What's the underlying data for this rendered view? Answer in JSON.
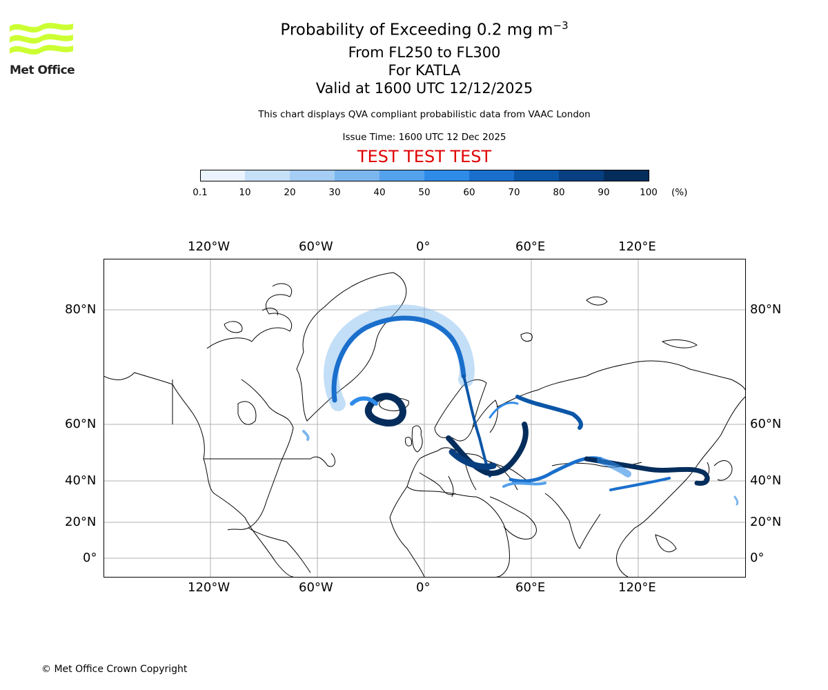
{
  "logo": {
    "text": "Met Office",
    "color": "#ccff33"
  },
  "title": {
    "line1_prefix": "Probability of Exceeding 0.2 mg m",
    "line1_sup": "−3",
    "line2": "From FL250 to FL300",
    "line3": "For KATLA",
    "line4": "Valid at 1600 UTC 12/12/2025"
  },
  "subtitle": "This chart displays QVA compliant probabilistic data from VAAC London",
  "issue_time": "Issue Time: 1600 UTC 12 Dec 2025",
  "test_banner": {
    "text": "TEST TEST TEST",
    "color": "#e00000"
  },
  "colorbar": {
    "ticks": [
      "0.1",
      "10",
      "20",
      "30",
      "40",
      "50",
      "60",
      "70",
      "80",
      "90",
      "100"
    ],
    "unit": "(%)",
    "colors": [
      "#eaf3fe",
      "#c6e0f8",
      "#a6cdf3",
      "#7bb6ee",
      "#54a1ec",
      "#2f8be8",
      "#1a6fcc",
      "#0b56a7",
      "#073f80",
      "#052d5c"
    ]
  },
  "map": {
    "lon_labels": [
      "120°W",
      "60°W",
      "0°",
      "60°E",
      "120°E"
    ],
    "lat_labels": [
      "80°N",
      "60°N",
      "40°N",
      "20°N",
      "0°"
    ]
  },
  "copyright": "© Met Office Crown Copyright"
}
